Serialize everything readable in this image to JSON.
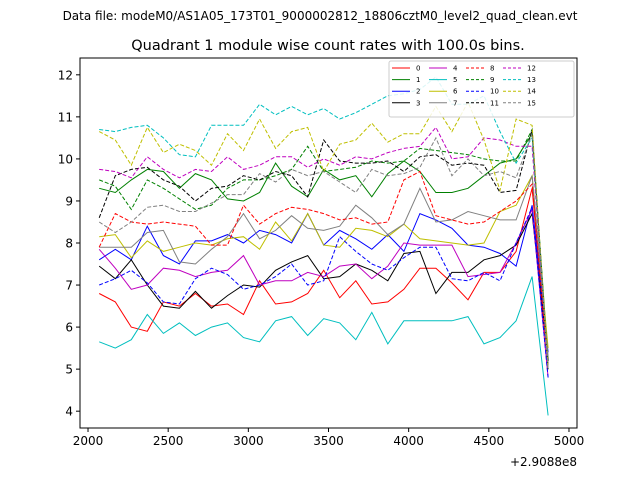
{
  "header_text": "Data file: modeM0/AS1A05_173T01_9000002812_18806cztM0_level2_quad_clean.evt",
  "chart_data": {
    "type": "line",
    "title": "Quadrant 1 module wise count rates with 100.0s bins.",
    "xlabel": "",
    "ylabel": "",
    "x_offset_label": "+2.9088e8",
    "xlim": [
      1950,
      5050
    ],
    "ylim": [
      3.6,
      12.4
    ],
    "xticks": [
      2000,
      2500,
      3000,
      3500,
      4000,
      4500,
      5000
    ],
    "yticks": [
      4,
      5,
      6,
      7,
      8,
      9,
      10,
      11,
      12
    ],
    "legend_position": "top-right",
    "legend_columns": 4,
    "x": [
      2070,
      2170,
      2270,
      2370,
      2470,
      2570,
      2670,
      2770,
      2870,
      2970,
      3070,
      3170,
      3270,
      3370,
      3470,
      3570,
      3670,
      3770,
      3870,
      3970,
      4070,
      4170,
      4270,
      4370,
      4470,
      4570,
      4670,
      4770,
      4870
    ],
    "series": [
      {
        "name": "0",
        "color": "#ff0000",
        "dash": false,
        "values": [
          6.8,
          6.6,
          6.0,
          5.9,
          6.6,
          6.5,
          6.8,
          6.5,
          6.55,
          6.3,
          7.1,
          6.55,
          6.6,
          6.8,
          7.35,
          6.7,
          7.1,
          6.55,
          6.6,
          6.9,
          7.4,
          7.4,
          7.05,
          6.65,
          7.3,
          7.3,
          7.8,
          9.3,
          5.1
        ]
      },
      {
        "name": "1",
        "color": "#008000",
        "dash": false,
        "values": [
          9.3,
          9.2,
          9.5,
          9.75,
          9.7,
          9.3,
          9.65,
          9.5,
          9.05,
          9.0,
          9.2,
          9.9,
          9.35,
          9.1,
          9.75,
          9.5,
          9.6,
          9.1,
          9.65,
          9.95,
          9.7,
          9.2,
          9.2,
          9.3,
          9.6,
          9.9,
          10.0,
          10.6,
          5.2
        ]
      },
      {
        "name": "2",
        "color": "#0000ff",
        "dash": false,
        "values": [
          7.6,
          7.85,
          7.6,
          8.4,
          7.7,
          7.5,
          8.05,
          8.05,
          8.2,
          8.0,
          8.3,
          8.2,
          8.0,
          8.7,
          7.95,
          8.3,
          8.1,
          7.85,
          8.2,
          7.8,
          8.7,
          8.55,
          8.35,
          7.95,
          7.9,
          7.75,
          7.45,
          8.9,
          5.4
        ]
      },
      {
        "name": "3",
        "color": "#000000",
        "dash": false,
        "values": [
          7.45,
          7.15,
          7.6,
          7.0,
          6.5,
          6.45,
          6.85,
          6.45,
          6.75,
          7.0,
          6.95,
          7.35,
          7.55,
          7.7,
          7.15,
          7.2,
          7.5,
          7.35,
          7.1,
          7.75,
          7.8,
          6.8,
          7.3,
          7.3,
          7.6,
          7.7,
          7.95,
          8.7,
          5.2
        ]
      },
      {
        "name": "4",
        "color": "#bf00bf",
        "dash": false,
        "values": [
          7.85,
          7.4,
          6.9,
          7.0,
          7.4,
          7.35,
          7.2,
          7.3,
          7.35,
          7.7,
          7.0,
          7.1,
          7.1,
          7.3,
          7.2,
          7.45,
          7.5,
          7.15,
          7.45,
          8.0,
          7.95,
          7.95,
          7.95,
          7.2,
          7.25,
          7.3,
          8.0,
          8.8,
          4.8
        ]
      },
      {
        "name": "5",
        "color": "#00bfbf",
        "dash": false,
        "values": [
          5.65,
          5.5,
          5.7,
          6.3,
          5.85,
          6.1,
          5.8,
          6.0,
          6.1,
          5.75,
          5.65,
          6.15,
          6.25,
          5.8,
          6.2,
          6.1,
          5.7,
          6.35,
          5.6,
          6.15,
          6.15,
          6.15,
          6.15,
          6.25,
          5.6,
          5.75,
          6.15,
          7.2,
          3.9
        ]
      },
      {
        "name": "6",
        "color": "#bfbf00",
        "dash": false,
        "values": [
          8.15,
          8.2,
          7.65,
          8.05,
          7.8,
          7.9,
          8.0,
          7.95,
          8.1,
          8.15,
          7.85,
          8.5,
          8.05,
          8.7,
          7.95,
          7.9,
          8.35,
          8.3,
          8.15,
          8.45,
          8.1,
          8.05,
          8.0,
          7.95,
          8.0,
          8.75,
          8.9,
          9.6,
          5.5
        ]
      },
      {
        "name": "7",
        "color": "#808080",
        "dash": false,
        "values": [
          7.9,
          7.9,
          7.9,
          8.25,
          8.3,
          7.55,
          7.5,
          7.85,
          8.15,
          8.7,
          8.1,
          8.3,
          8.65,
          8.35,
          8.3,
          8.4,
          8.9,
          8.6,
          8.2,
          8.45,
          9.3,
          8.5,
          8.55,
          8.75,
          8.65,
          8.55,
          8.55,
          9.6,
          5.3
        ]
      },
      {
        "name": "8",
        "color": "#ff0000",
        "dash": true,
        "values": [
          7.9,
          8.7,
          8.5,
          8.45,
          8.5,
          8.45,
          8.4,
          7.95,
          7.95,
          8.9,
          8.45,
          8.7,
          8.85,
          8.8,
          8.7,
          8.55,
          8.6,
          8.45,
          8.5,
          9.5,
          9.7,
          8.65,
          8.55,
          8.45,
          8.5,
          8.75,
          9.0,
          9.4,
          5.0
        ]
      },
      {
        "name": "9",
        "color": "#008000",
        "dash": true,
        "values": [
          9.5,
          9.35,
          8.8,
          9.5,
          9.3,
          9.05,
          8.8,
          8.9,
          9.3,
          9.5,
          9.5,
          9.6,
          9.75,
          10.3,
          9.7,
          9.75,
          9.8,
          9.95,
          9.9,
          9.95,
          10.25,
          10.2,
          10.15,
          10.1,
          10.0,
          9.95,
          9.95,
          10.7,
          5.0
        ]
      },
      {
        "name": "10",
        "color": "#0000ff",
        "dash": true,
        "values": [
          7.0,
          7.15,
          7.35,
          7.05,
          6.6,
          6.55,
          7.15,
          7.4,
          7.25,
          6.9,
          7.0,
          7.2,
          7.5,
          7.0,
          7.1,
          8.15,
          7.8,
          7.5,
          7.35,
          7.65,
          7.9,
          7.9,
          7.15,
          7.1,
          7.3,
          7.1,
          8.0,
          8.85,
          4.8
        ]
      },
      {
        "name": "11",
        "color": "#000000",
        "dash": true,
        "values": [
          8.6,
          9.6,
          9.75,
          9.8,
          9.5,
          9.35,
          9.0,
          9.3,
          9.35,
          9.6,
          9.5,
          9.7,
          9.6,
          9.1,
          10.45,
          9.95,
          9.9,
          9.9,
          9.95,
          9.7,
          10.05,
          10.1,
          9.85,
          9.9,
          9.85,
          9.2,
          9.25,
          10.7,
          5.0
        ]
      },
      {
        "name": "12",
        "color": "#bf00bf",
        "dash": true,
        "values": [
          9.75,
          9.7,
          9.55,
          10.05,
          9.75,
          9.55,
          9.75,
          9.7,
          10.05,
          9.75,
          9.85,
          10.05,
          10.05,
          9.8,
          10.0,
          9.85,
          10.05,
          10.0,
          10.15,
          10.25,
          10.3,
          10.75,
          10.0,
          10.05,
          10.5,
          10.45,
          10.3,
          10.3,
          5.0
        ]
      },
      {
        "name": "13",
        "color": "#00bfbf",
        "dash": true,
        "values": [
          10.7,
          10.65,
          10.75,
          10.8,
          10.5,
          10.1,
          10.05,
          10.8,
          10.8,
          10.8,
          11.3,
          11.05,
          11.25,
          11.05,
          11.2,
          10.95,
          11.1,
          11.3,
          11.5,
          11.55,
          11.65,
          11.95,
          11.3,
          11.3,
          11.5,
          10.65,
          9.9,
          10.5,
          5.0
        ]
      },
      {
        "name": "14",
        "color": "#bfbf00",
        "dash": true,
        "values": [
          10.65,
          10.45,
          9.85,
          10.75,
          10.15,
          10.35,
          10.2,
          9.85,
          10.6,
          10.2,
          10.95,
          10.25,
          10.65,
          10.75,
          9.7,
          10.35,
          10.45,
          10.85,
          10.4,
          10.6,
          10.6,
          11.25,
          10.65,
          11.35,
          10.45,
          9.25,
          10.95,
          10.8,
          5.0
        ]
      },
      {
        "name": "15",
        "color": "#808080",
        "dash": true,
        "values": [
          8.5,
          8.25,
          8.5,
          8.85,
          8.9,
          8.75,
          8.75,
          8.95,
          9.15,
          9.15,
          9.65,
          9.45,
          9.75,
          9.6,
          9.7,
          9.45,
          9.2,
          9.75,
          9.6,
          9.65,
          9.8,
          10.5,
          9.6,
          10.0,
          9.6,
          9.7,
          9.55,
          10.6,
          5.0
        ]
      }
    ]
  }
}
